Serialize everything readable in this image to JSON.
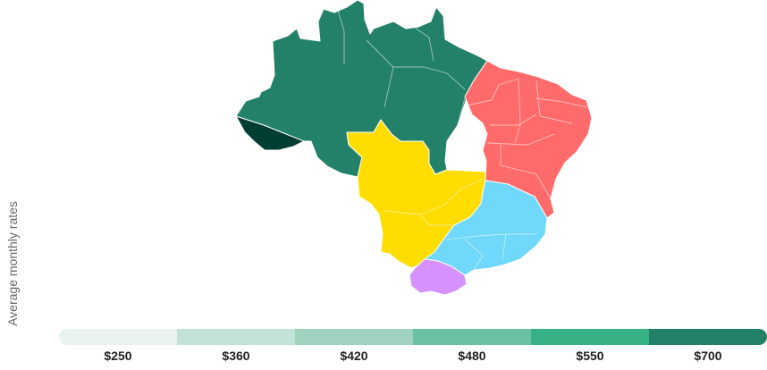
{
  "axis_label": "Average monthly rates",
  "legend": {
    "bins": [
      {
        "label": "$250",
        "color": "#e8f3f0"
      },
      {
        "label": "$360",
        "color": "#c3e3d8"
      },
      {
        "label": "$420",
        "color": "#9fd3c0"
      },
      {
        "label": "$480",
        "color": "#6bc2a3"
      },
      {
        "label": "$550",
        "color": "#35b183"
      },
      {
        "label": "$700",
        "color": "#238069"
      }
    ]
  },
  "regions": [
    {
      "id": "north",
      "color": "#238069"
    },
    {
      "id": "acre",
      "color": "#003d33"
    },
    {
      "id": "northeast",
      "color": "#ff6b6b"
    },
    {
      "id": "center-west",
      "color": "#ffdd00"
    },
    {
      "id": "southeast",
      "color": "#6fd8fb"
    },
    {
      "id": "south",
      "color": "#d592ff"
    }
  ]
}
